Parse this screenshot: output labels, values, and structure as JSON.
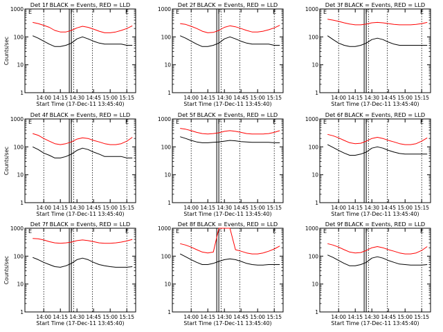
{
  "chart_data": [
    {
      "type": "line",
      "title": "Det 1f BLACK = Events, RED = LLD",
      "ylabel": "Counts/sec",
      "xlabel": "Start Time (17-Dec-11 13:45:40)",
      "xticks": [
        "14:00",
        "14:15",
        "14:30",
        "14:45",
        "15:00",
        "15:15"
      ],
      "yticks": [
        "1",
        "10",
        "100",
        "1000"
      ],
      "yscale": "log",
      "ylim": [
        1,
        1000
      ],
      "markers": [
        "E",
        "F",
        "E"
      ],
      "series": [
        {
          "color": "#ff0000",
          "values": [
            330,
            300,
            260,
            220,
            170,
            150,
            150,
            170,
            210,
            240,
            220,
            190,
            160,
            140,
            140,
            150,
            170,
            200,
            250
          ]
        },
        {
          "color": "#000000",
          "values": [
            110,
            90,
            70,
            55,
            45,
            45,
            50,
            60,
            85,
            100,
            85,
            70,
            60,
            55,
            55,
            55,
            55,
            50,
            50
          ]
        }
      ]
    },
    {
      "type": "line",
      "title": "Det 2f BLACK = Events, RED = LLD",
      "ylabel": "",
      "xlabel": "Start Time (17-Dec-11 13:45:40)",
      "xticks": [
        "14:00",
        "14:15",
        "14:30",
        "14:45",
        "15:00",
        "15:15"
      ],
      "yticks": [
        "1",
        "10",
        "100",
        "1000"
      ],
      "yscale": "log",
      "ylim": [
        1,
        1000
      ],
      "markers": [
        "E",
        "F",
        "E"
      ],
      "series": [
        {
          "color": "#ff0000",
          "values": [
            300,
            280,
            240,
            200,
            160,
            140,
            145,
            170,
            220,
            250,
            230,
            200,
            170,
            150,
            150,
            160,
            180,
            210,
            260
          ]
        },
        {
          "color": "#000000",
          "values": [
            110,
            90,
            70,
            55,
            45,
            45,
            50,
            60,
            85,
            100,
            85,
            70,
            60,
            55,
            55,
            55,
            55,
            50,
            50
          ]
        }
      ]
    },
    {
      "type": "line",
      "title": "Det 3f BLACK = Events, RED = LLD",
      "ylabel": "",
      "xlabel": "Start Time (17-Dec-11 13:45:40)",
      "xticks": [
        "14:00",
        "14:15",
        "14:30",
        "14:45",
        "15:00",
        "15:15"
      ],
      "yticks": [
        "1",
        "10",
        "100",
        "1000"
      ],
      "yscale": "log",
      "ylim": [
        1,
        1000
      ],
      "markers": [
        "E",
        "F",
        "E"
      ],
      "series": [
        {
          "color": "#ff0000",
          "values": [
            430,
            400,
            360,
            320,
            290,
            270,
            270,
            290,
            320,
            330,
            320,
            300,
            280,
            270,
            270,
            270,
            280,
            300,
            330
          ]
        },
        {
          "color": "#000000",
          "values": [
            110,
            80,
            60,
            50,
            45,
            45,
            50,
            60,
            80,
            90,
            80,
            65,
            55,
            50,
            50,
            50,
            50,
            50,
            50
          ]
        }
      ]
    },
    {
      "type": "line",
      "title": "Det 4f BLACK = Events, RED = LLD",
      "ylabel": "Counts/sec",
      "xlabel": "Start Time (17-Dec-11 13:45:40)",
      "xticks": [
        "14:00",
        "14:15",
        "14:30",
        "14:45",
        "15:00",
        "15:15"
      ],
      "yticks": [
        "1",
        "10",
        "100",
        "1000"
      ],
      "yscale": "log",
      "ylim": [
        1,
        1000
      ],
      "markers": [
        "E",
        "F",
        "E"
      ],
      "series": [
        {
          "color": "#ff0000",
          "values": [
            300,
            260,
            200,
            160,
            130,
            120,
            130,
            150,
            190,
            210,
            200,
            170,
            150,
            130,
            120,
            120,
            130,
            160,
            220
          ]
        },
        {
          "color": "#000000",
          "values": [
            100,
            80,
            60,
            50,
            40,
            40,
            45,
            55,
            75,
            90,
            80,
            65,
            55,
            45,
            45,
            45,
            45,
            40,
            40
          ]
        }
      ]
    },
    {
      "type": "line",
      "title": "Det 5f BLACK = Events, RED = LLD",
      "ylabel": "",
      "xlabel": "Start Time (17-Dec-11 13:45:40)",
      "xticks": [
        "14:00",
        "14:15",
        "14:30",
        "14:45",
        "15:00",
        "15:15"
      ],
      "yticks": [
        "1",
        "10",
        "100",
        "1000"
      ],
      "yscale": "log",
      "ylim": [
        1,
        1000
      ],
      "markers": [
        "E",
        "F",
        "E"
      ],
      "series": [
        {
          "color": "#ff0000",
          "values": [
            460,
            430,
            380,
            330,
            300,
            290,
            300,
            320,
            360,
            380,
            360,
            330,
            300,
            290,
            290,
            290,
            300,
            330,
            380
          ]
        },
        {
          "color": "#000000",
          "values": [
            230,
            200,
            170,
            150,
            140,
            140,
            145,
            150,
            160,
            170,
            165,
            155,
            150,
            145,
            145,
            145,
            145,
            140,
            140
          ]
        }
      ]
    },
    {
      "type": "line",
      "title": "Det 6f BLACK = Events, RED = LLD",
      "ylabel": "",
      "xlabel": "Start Time (17-Dec-11 13:45:40)",
      "xticks": [
        "14:00",
        "14:15",
        "14:30",
        "14:45",
        "15:00",
        "15:15"
      ],
      "yticks": [
        "1",
        "10",
        "100",
        "1000"
      ],
      "yscale": "log",
      "ylim": [
        1,
        1000
      ],
      "markers": [
        "E",
        "F",
        "E"
      ],
      "series": [
        {
          "color": "#ff0000",
          "values": [
            280,
            250,
            210,
            170,
            140,
            130,
            135,
            160,
            200,
            220,
            200,
            170,
            150,
            130,
            120,
            120,
            130,
            160,
            210
          ]
        },
        {
          "color": "#000000",
          "values": [
            120,
            95,
            75,
            60,
            50,
            50,
            55,
            65,
            90,
            100,
            90,
            75,
            65,
            58,
            55,
            55,
            55,
            55,
            55
          ]
        }
      ]
    },
    {
      "type": "line",
      "title": "Det 7f BLACK = Events, RED = LLD",
      "ylabel": "Counts/sec",
      "xlabel": "Start Time (17-Dec-11 13:45:40)",
      "xticks": [
        "14:00",
        "14:15",
        "14:30",
        "14:45",
        "15:00",
        "15:15"
      ],
      "yticks": [
        "1",
        "10",
        "100",
        "1000"
      ],
      "yscale": "log",
      "ylim": [
        1,
        1000
      ],
      "markers": [
        "E",
        "F",
        "E"
      ],
      "series": [
        {
          "color": "#ff0000",
          "values": [
            430,
            420,
            380,
            330,
            300,
            290,
            300,
            320,
            360,
            380,
            360,
            330,
            300,
            290,
            290,
            300,
            320,
            350,
            400
          ]
        },
        {
          "color": "#000000",
          "values": [
            90,
            75,
            60,
            50,
            42,
            40,
            45,
            55,
            75,
            85,
            75,
            60,
            50,
            45,
            42,
            40,
            40,
            40,
            42
          ]
        }
      ]
    },
    {
      "type": "line",
      "title": "Det 8f BLACK = Events, RED = LLD",
      "ylabel": "",
      "xlabel": "Start Time (17-Dec-11 13:45:40)",
      "xticks": [
        "14:00",
        "14:15",
        "14:30",
        "14:45",
        "15:00",
        "15:15"
      ],
      "yticks": [
        "1",
        "10",
        "100",
        "1000"
      ],
      "yscale": "log",
      "ylim": [
        1,
        1000
      ],
      "markers": [
        "E",
        "F",
        "E"
      ],
      "series": [
        {
          "color": "#ff0000",
          "values": [
            280,
            250,
            210,
            170,
            140,
            130,
            140,
            1000,
            1000,
            1000,
            170,
            150,
            130,
            120,
            120,
            130,
            150,
            180,
            230
          ]
        },
        {
          "color": "#000000",
          "values": [
            120,
            95,
            75,
            60,
            50,
            50,
            55,
            65,
            75,
            80,
            75,
            65,
            55,
            50,
            48,
            48,
            50,
            50,
            50
          ]
        }
      ]
    },
    {
      "type": "line",
      "title": "Det 9f BLACK = Events, RED = LLD",
      "ylabel": "",
      "xlabel": "Start Time (17-Dec-11 13:45:40)",
      "xticks": [
        "14:00",
        "14:15",
        "14:30",
        "14:45",
        "15:00",
        "15:15"
      ],
      "yticks": [
        "1",
        "10",
        "100",
        "1000"
      ],
      "yscale": "log",
      "ylim": [
        1,
        1000
      ],
      "markers": [
        "E",
        "F",
        "E"
      ],
      "series": [
        {
          "color": "#ff0000",
          "values": [
            280,
            250,
            210,
            170,
            140,
            130,
            135,
            160,
            200,
            220,
            200,
            170,
            150,
            130,
            120,
            120,
            130,
            160,
            220
          ]
        },
        {
          "color": "#000000",
          "values": [
            110,
            90,
            70,
            55,
            45,
            45,
            50,
            60,
            85,
            95,
            85,
            70,
            60,
            52,
            50,
            48,
            48,
            48,
            50
          ]
        }
      ]
    }
  ]
}
